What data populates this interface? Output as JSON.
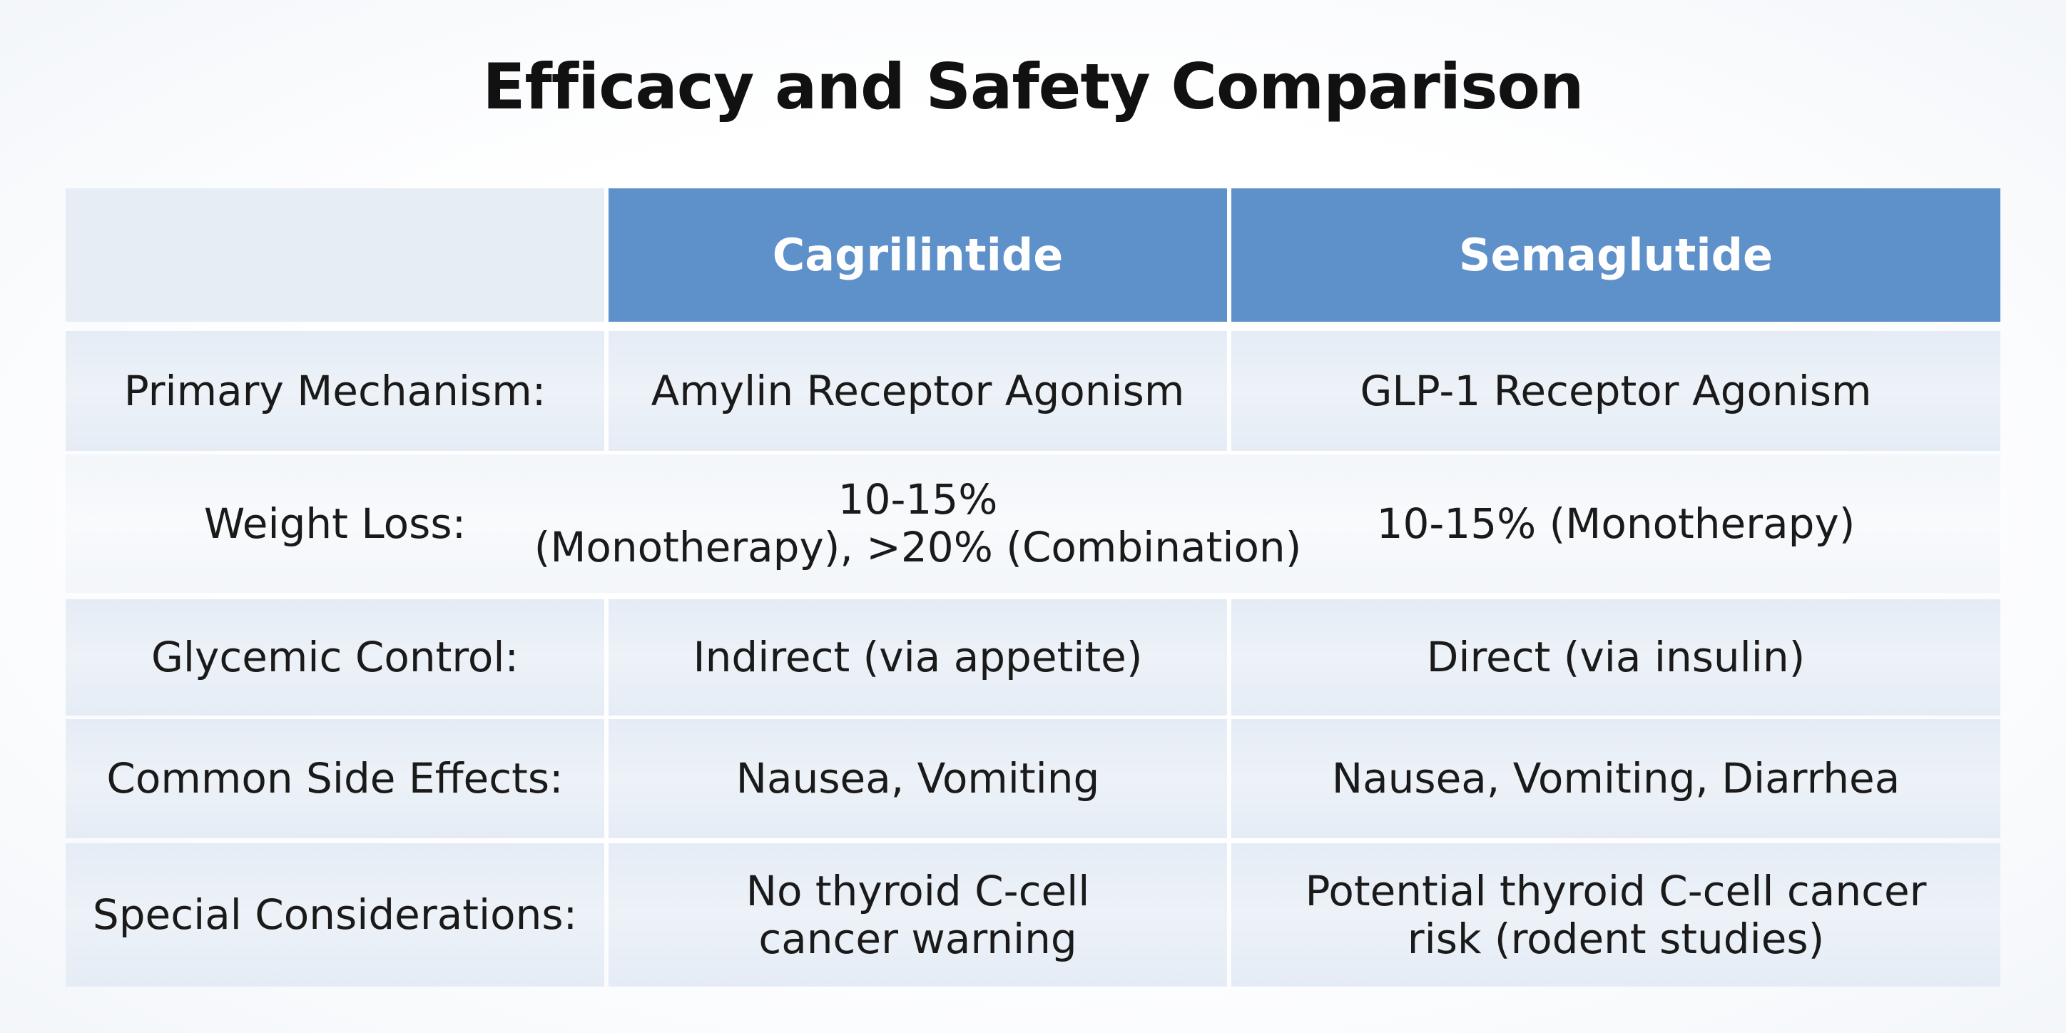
{
  "header": {
    "title": "Efficacy and Safety Comparison"
  },
  "table": {
    "columns": [
      "Cagrilintide",
      "Semaglutide"
    ],
    "rows": [
      {
        "label": "Primary Mechanism:",
        "cells": [
          [
            "Amylin Receptor Agonism"
          ],
          [
            "GLP-1 Receptor Agonism"
          ]
        ]
      },
      {
        "label": "Weight Loss:",
        "cells": [
          [
            "10-15%",
            "(Monotherapy), >20% (Combination)"
          ],
          [
            "10-15% (Monotherapy)"
          ]
        ]
      },
      {
        "label": "Glycemic Control:",
        "cells": [
          [
            "Indirect (via appetite)"
          ],
          [
            "Direct (via insulin)"
          ]
        ]
      },
      {
        "label": "Common Side Effects:",
        "cells": [
          [
            "Nausea, Vomiting"
          ],
          [
            "Nausea, Vomiting, Diarrhea"
          ]
        ]
      },
      {
        "label": "Special Considerations:",
        "cells": [
          [
            "No thyroid C-cell",
            "cancer warning"
          ],
          [
            "Potential thyroid C-cell cancer",
            "risk (rodent studies)"
          ]
        ]
      }
    ]
  }
}
